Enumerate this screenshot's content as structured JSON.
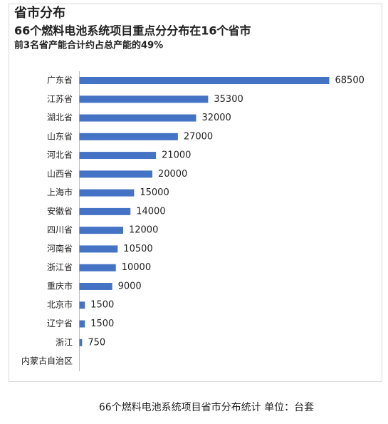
{
  "chart_data": {
    "type": "bar",
    "orientation": "horizontal",
    "title": "省市分布",
    "subtitle": [
      "66个燃料电池系统项目重点分分布在16个省市",
      "前3名省产能合计约占总产能的49%"
    ],
    "categories": [
      "广东省",
      "江苏省",
      "湖北省",
      "山东省",
      "河北省",
      "山西省",
      "上海市",
      "安徽省",
      "四川省",
      "河南省",
      "浙江省",
      "重庆市",
      "北京市",
      "辽宁省",
      "浙江",
      "内蒙古自治区"
    ],
    "values": [
      68500,
      35300,
      32000,
      27000,
      21000,
      20000,
      15000,
      14000,
      12000,
      10500,
      10000,
      9000,
      1500,
      1500,
      750,
      null
    ],
    "color": "#4472c4"
  },
  "caption": "66个燃料电池系统项目省市分布统计 单位：台套"
}
